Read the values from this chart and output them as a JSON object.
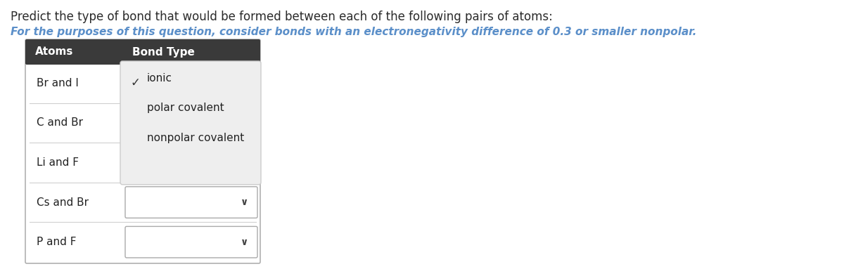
{
  "title": "Predict the type of bond that would be formed between each of the following pairs of atoms:",
  "subtitle": "For the purposes of this question, consider bonds with an electronegativity difference of 0.3 or smaller nonpolar.",
  "title_color": "#2b2b2b",
  "subtitle_color": "#5b8fc9",
  "header_bg": "#3a3a3a",
  "header_text_color": "#ffffff",
  "col1_header": "Atoms",
  "col2_header": "Bond Type",
  "atoms": [
    "Br and I",
    "C and Br",
    "Li and F",
    "Cs and Br",
    "P and F"
  ],
  "empty_dropdown_rows": [
    3,
    4
  ],
  "dropdown_options": [
    "ionic",
    "polar covalent",
    "nonpolar covalent"
  ],
  "checkmark": "✓",
  "chevron": "∨",
  "row_text_color": "#222222",
  "border_color": "#b0b0b0",
  "separator_color": "#d0d0d0",
  "dropdown_open_bg": "#eeeeee",
  "dropdown_open_border": "#cccccc",
  "empty_dd_border": "#aaaaaa",
  "title_fontsize": 12,
  "subtitle_fontsize": 11,
  "header_fontsize": 11,
  "row_fontsize": 11,
  "option_fontsize": 11,
  "checkmark_fontsize": 12,
  "chevron_fontsize": 10
}
